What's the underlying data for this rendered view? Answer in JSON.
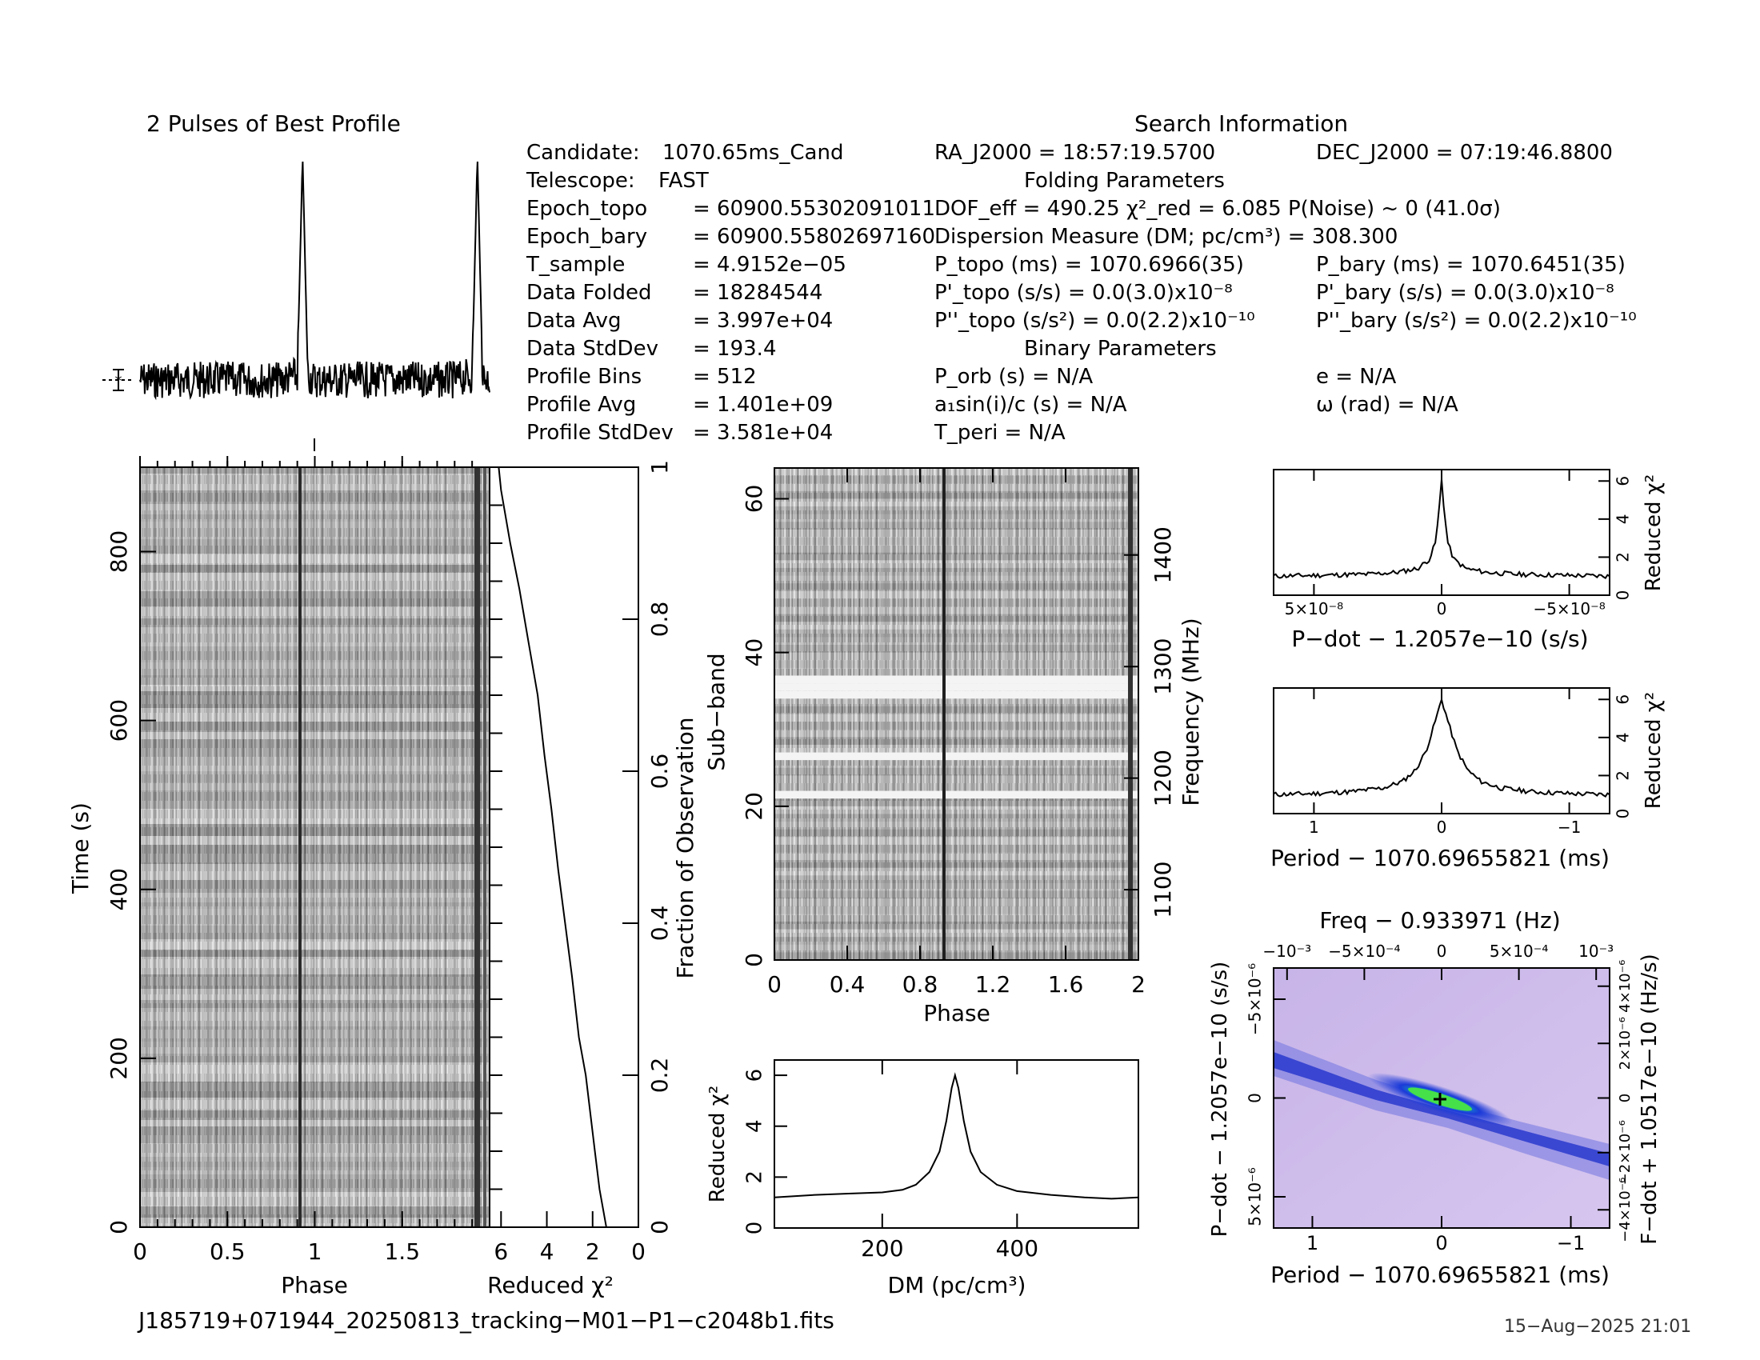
{
  "profile_title": "2 Pulses of Best Profile",
  "search_title": "Search Information",
  "info_left": [
    {
      "k": "Candidate:",
      "v": "1070.65ms_Cand"
    },
    {
      "k": "Telescope:",
      "v": "FAST"
    },
    {
      "k": "Epoch_topo",
      "v": "= 60900.55302091011"
    },
    {
      "k": "Epoch_bary",
      "v": "= 60900.55802697160"
    },
    {
      "k": "T_sample",
      "v": "= 4.9152e−05"
    },
    {
      "k": "Data Folded",
      "v": "= 18284544"
    },
    {
      "k": "Data Avg",
      "v": "= 3.997e+04"
    },
    {
      "k": "Data StdDev",
      "v": "= 193.4"
    },
    {
      "k": "Profile Bins",
      "v": "= 512"
    },
    {
      "k": "Profile Avg",
      "v": "= 1.401e+09"
    },
    {
      "k": "Profile StdDev",
      "v": "= 3.581e+04"
    }
  ],
  "info_mid": {
    "ra": "RA_J2000 = 18:57:19.5700",
    "folding_title": "Folding Parameters",
    "dof": "DOF_eff = 490.25  χ²_red = 6.085",
    "dm": "Dispersion Measure (DM; pc/cm³) = 308.300",
    "p_topo": "P_topo (ms) =  1070.6966(35)",
    "pd_topo": "P'_topo (s/s) = 0.0(3.0)x10⁻⁸",
    "pdd_topo": "P''_topo (s/s²) = 0.0(2.2)x10⁻¹⁰",
    "binary_title": "Binary Parameters",
    "p_orb": "P_orb (s) = N/A",
    "a1": "a₁sin(i)/c (s) = N/A",
    "t_peri": "T_peri = N/A"
  },
  "info_right": {
    "dec": "DEC_J2000 = 07:19:46.8800",
    "noise": "P(Noise) ~ 0    (41.0σ)",
    "p_bary": "P_bary (ms) =  1070.6451(35)",
    "pd_bary": "P'_bary (s/s) = 0.0(3.0)x10⁻⁸",
    "pdd_bary": "P''_bary (s/s²) = 0.0(2.2)x10⁻¹⁰",
    "ecc": "e = N/A",
    "omega": "ω (rad) = N/A"
  },
  "footer": {
    "filename": "J185719+071944_20250813_tracking−M01−P1−c2048b1.fits",
    "timestamp": "15−Aug−2025 21:01"
  },
  "colors": {
    "ink": "#000000",
    "grid_bg": "#8a8a8a",
    "ppdot_bg": "#c9b2e6",
    "ppdot_core": "#1a2bd0",
    "ppdot_peak": "#3fd24f"
  },
  "chart_data": [
    {
      "type": "line",
      "id": "pulse-profile",
      "title": "2 Pulses of Best Profile",
      "x": [
        0,
        0.2,
        0.4,
        0.6,
        0.8,
        0.9,
        0.93,
        0.96,
        1.0,
        1.2,
        1.4,
        1.6,
        1.8,
        1.9,
        1.93,
        1.96,
        2.0
      ],
      "y": [
        0.0,
        0.0,
        0.0,
        0.0,
        0.0,
        0.02,
        1.0,
        0.02,
        0.0,
        0.0,
        0.0,
        0.0,
        0.0,
        0.02,
        1.0,
        0.02,
        0.0
      ],
      "xlim": [
        0,
        2
      ]
    },
    {
      "type": "heatmap",
      "id": "time-phase",
      "xlabel": "Phase",
      "ylabel": "Time (s)",
      "xlim": [
        0,
        2
      ],
      "ylim": [
        0,
        900
      ],
      "xticks": [
        "0",
        "0.5",
        "1",
        "1.5"
      ],
      "yticks": [
        "0",
        "200",
        "400",
        "600",
        "800"
      ],
      "pulse_phase": 0.93
    },
    {
      "type": "line",
      "id": "chi-vs-fraction",
      "xlabel": "Reduced χ²",
      "ylabel": "Fraction of Observation",
      "xlim": [
        6.5,
        0
      ],
      "ylim": [
        0,
        1
      ],
      "xticks": [
        "6",
        "4",
        "2",
        "0"
      ],
      "yticks": [
        "0",
        "0.2",
        "0.4",
        "0.6",
        "0.8",
        "1"
      ],
      "x": [
        1.4,
        1.7,
        1.9,
        2.1,
        2.3,
        2.6,
        2.9,
        3.2,
        3.5,
        3.8,
        4.1,
        4.4,
        4.8,
        5.2,
        5.6,
        6.0,
        6.1
      ],
      "y": [
        0.0,
        0.05,
        0.1,
        0.15,
        0.2,
        0.25,
        0.33,
        0.4,
        0.47,
        0.55,
        0.62,
        0.7,
        0.77,
        0.84,
        0.9,
        0.97,
        1.0
      ]
    },
    {
      "type": "heatmap",
      "id": "subband-phase",
      "xlabel": "Phase",
      "ylabel": "Sub−band",
      "y2label": "Frequency (MHz)",
      "xlim": [
        0,
        2
      ],
      "ylim": [
        0,
        64
      ],
      "xticks": [
        "0",
        "0.4",
        "0.8",
        "1.2",
        "1.6",
        "2"
      ],
      "yticks": [
        "0",
        "20",
        "40",
        "60"
      ],
      "y2ticks": [
        "1100",
        "1200",
        "1300",
        "1400"
      ],
      "masked_subbands": [
        21,
        26,
        34,
        35,
        36
      ],
      "pulse_phase": 0.93
    },
    {
      "type": "line",
      "id": "dm-curve",
      "xlabel": "DM (pc/cm³)",
      "ylabel": "Reduced χ²",
      "xlim": [
        40,
        580
      ],
      "ylim": [
        0,
        6.6
      ],
      "xticks": [
        "200",
        "400"
      ],
      "yticks": [
        "0",
        "2",
        "4",
        "6"
      ],
      "x": [
        40,
        100,
        150,
        200,
        230,
        250,
        270,
        285,
        295,
        303,
        308,
        313,
        321,
        331,
        346,
        370,
        400,
        450,
        500,
        540,
        580
      ],
      "y": [
        1.2,
        1.3,
        1.35,
        1.4,
        1.5,
        1.7,
        2.2,
        3.0,
        4.2,
        5.5,
        6.0,
        5.5,
        4.2,
        3.0,
        2.2,
        1.7,
        1.45,
        1.3,
        1.2,
        1.15,
        1.2
      ]
    },
    {
      "type": "line",
      "id": "pdot-curve",
      "xlabel": "P−dot − 1.2057e−10 (s/s)",
      "ylabel": "Reduced χ²",
      "xlim": [
        5.6e-08,
        -5.6e-08
      ],
      "ylim": [
        0,
        6.6
      ],
      "xticks": [
        "5×10⁻⁸",
        "0",
        "−5×10⁻⁸"
      ],
      "yticks": [
        "0",
        "2",
        "4",
        "6"
      ],
      "x": [
        5.6e-08,
        4e-08,
        2.5e-08,
        1.5e-08,
        8e-09,
        4e-09,
        2e-09,
        1e-09,
        0,
        -1e-09,
        -2e-09,
        -4e-09,
        -8e-09,
        -1.5e-08,
        -2.5e-08,
        -4e-08,
        -5.6e-08
      ],
      "y": [
        1.0,
        1.05,
        1.1,
        1.2,
        1.4,
        1.9,
        2.8,
        4.2,
        6.1,
        4.2,
        2.8,
        1.9,
        1.4,
        1.2,
        1.1,
        1.05,
        1.0
      ]
    },
    {
      "type": "line",
      "id": "period-curve",
      "xlabel": "Period − 1070.69655821 (ms)",
      "ylabel": "Reduced χ²",
      "xlim": [
        1.3,
        -1.3
      ],
      "ylim": [
        0,
        6.6
      ],
      "xticks": [
        "1",
        "0",
        "−1"
      ],
      "yticks": [
        "0",
        "2",
        "4",
        "6"
      ],
      "x": [
        1.3,
        1.0,
        0.7,
        0.45,
        0.3,
        0.2,
        0.12,
        0.06,
        0.0,
        -0.06,
        -0.12,
        -0.2,
        -0.3,
        -0.45,
        -0.7,
        -1.0,
        -1.3
      ],
      "y": [
        1.0,
        1.05,
        1.15,
        1.35,
        1.7,
        2.3,
        3.3,
        4.6,
        6.0,
        4.6,
        3.3,
        2.3,
        1.7,
        1.35,
        1.15,
        1.05,
        1.0
      ]
    },
    {
      "type": "heatmap",
      "id": "p-pdot-plane",
      "title": "Freq − 0.933971 (Hz)",
      "xlabel": "Period − 1070.69655821 (ms)",
      "ylabel": "P−dot − 1.2057e−10 (s/s)",
      "y2label": "F−dot + 1.0517e−10 (Hz/s)",
      "xlim": [
        1.3,
        -1.3
      ],
      "ylim": [
        5.6e-06,
        -5.6e-06
      ],
      "xticks": [
        "1",
        "0",
        "−1"
      ],
      "x2ticks": [
        "−10⁻³",
        "−5×10⁻⁴",
        "0",
        "5×10⁻⁴",
        "10⁻³"
      ],
      "yticks": [
        "−5×10⁻⁶",
        "0",
        "5×10⁻⁶"
      ],
      "y2ticks": [
        "4×10⁻⁶",
        "2×10⁻⁶",
        "0",
        "−2×10⁻⁶",
        "−4×10⁻⁶"
      ],
      "best": [
        0,
        0
      ]
    }
  ]
}
